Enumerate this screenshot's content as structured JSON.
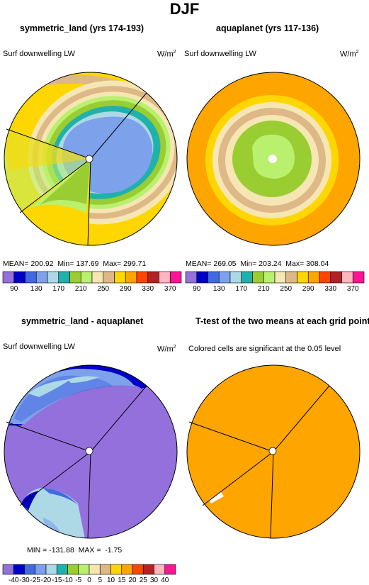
{
  "header": {
    "title": "DJF"
  },
  "panels": [
    {
      "title": "symmetric_land (yrs 174-193)",
      "variable": "Surf downwelling LW",
      "units": "W/m",
      "units_sup": "2",
      "stats": "MEAN= 200.92  Min= 137.69  Max= 299.71"
    },
    {
      "title": "aquaplanet (yrs 117-136)",
      "variable": "Surf downwelling LW",
      "units": "W/m",
      "units_sup": "2",
      "stats": "MEAN= 269.05  Min= 203.24  Max= 308.04"
    },
    {
      "title": "symmetric_land - aquaplanet",
      "variable": "Surf downwelling LW",
      "units": "W/m",
      "units_sup": "2",
      "stats": "MIN = -131.88  MAX =  -1.75"
    },
    {
      "title": "T-test of the two means at each grid point",
      "subtitle": "Colored cells are significant at the 0.05 level"
    }
  ],
  "colors": {
    "c1": "#9370db",
    "c2": "#0000c8",
    "c3": "#4169e1",
    "c4": "#7ea1ec",
    "c5": "#add8e6",
    "c6": "#20b2aa",
    "c7": "#9acd32",
    "c8": "#b9f06e",
    "c9": "#f5e6b3",
    "c10": "#deb887",
    "c11": "#ffd700",
    "c12": "#ffa500",
    "c13": "#ff4500",
    "c14": "#b22222",
    "c15": "#ffb6c1",
    "c16": "#ff1493",
    "lightblue_bg": "#add8e6",
    "ttest_orange": "#ffa500"
  },
  "chart_data": [
    {
      "type": "heatmap",
      "title": "symmetric_land (yrs 174-193)",
      "colorbar_labels": [
        "90",
        "130",
        "170",
        "210",
        "250",
        "290",
        "330",
        "370"
      ],
      "summary": {
        "mean": 200.92,
        "min": 137.69,
        "max": 299.71
      }
    },
    {
      "type": "heatmap",
      "title": "aquaplanet (yrs 117-136)",
      "colorbar_labels": [
        "90",
        "130",
        "170",
        "210",
        "250",
        "290",
        "330",
        "370"
      ],
      "summary": {
        "mean": 269.05,
        "min": 203.24,
        "max": 308.04
      }
    },
    {
      "type": "heatmap",
      "title": "symmetric_land - aquaplanet",
      "colorbar_labels": [
        "-40",
        "-30",
        "-25",
        "-20",
        "-15",
        "-10",
        "-5",
        "0",
        "5",
        "10",
        "15",
        "20",
        "25",
        "30",
        "40"
      ],
      "summary": {
        "min": -131.88,
        "max": -1.75
      }
    },
    {
      "type": "heatmap",
      "title": "T-test of the two means at each grid point",
      "subtitle": "Colored cells are significant at the 0.05 level"
    }
  ]
}
